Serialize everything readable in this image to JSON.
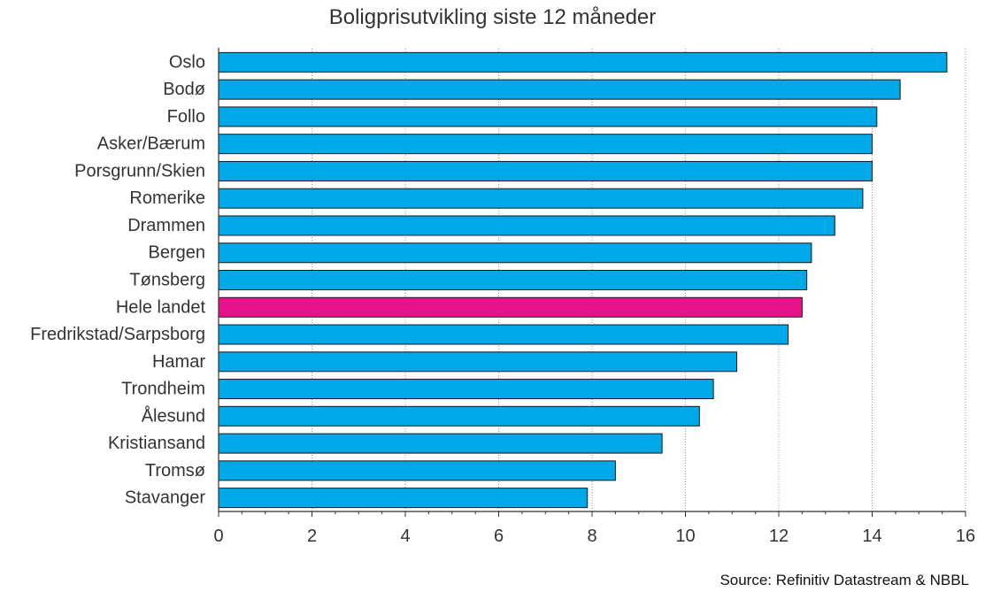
{
  "chart_data": {
    "type": "bar",
    "orientation": "horizontal",
    "title": "Boligprisutvikling siste 12 måneder",
    "xlabel": "",
    "ylabel": "",
    "categories": [
      "Oslo",
      "Bodø",
      "Follo",
      "Asker/Bærum",
      "Porsgrunn/Skien",
      "Romerike",
      "Drammen",
      "Bergen",
      "Tønsberg",
      "Hele landet",
      "Fredrikstad/Sarpsborg",
      "Hamar",
      "Trondheim",
      "Ålesund",
      "Kristiansand",
      "Tromsø",
      "Stavanger"
    ],
    "values": [
      15.6,
      14.6,
      14.1,
      14.0,
      14.0,
      13.8,
      13.2,
      12.7,
      12.6,
      12.5,
      12.2,
      11.1,
      10.6,
      10.3,
      9.5,
      8.5,
      7.9
    ],
    "highlight_category": "Hele landet",
    "xlim": [
      0,
      16
    ],
    "xticks": [
      0,
      2,
      4,
      6,
      8,
      10,
      12,
      14,
      16
    ],
    "grid": "vertical dotted",
    "colors": {
      "bar": "#00a8e8",
      "highlight": "#e8138a",
      "bar_edge": "#1a1a1a"
    }
  },
  "footer": {
    "source": "Source: Refinitiv Datastream & NBBL"
  }
}
